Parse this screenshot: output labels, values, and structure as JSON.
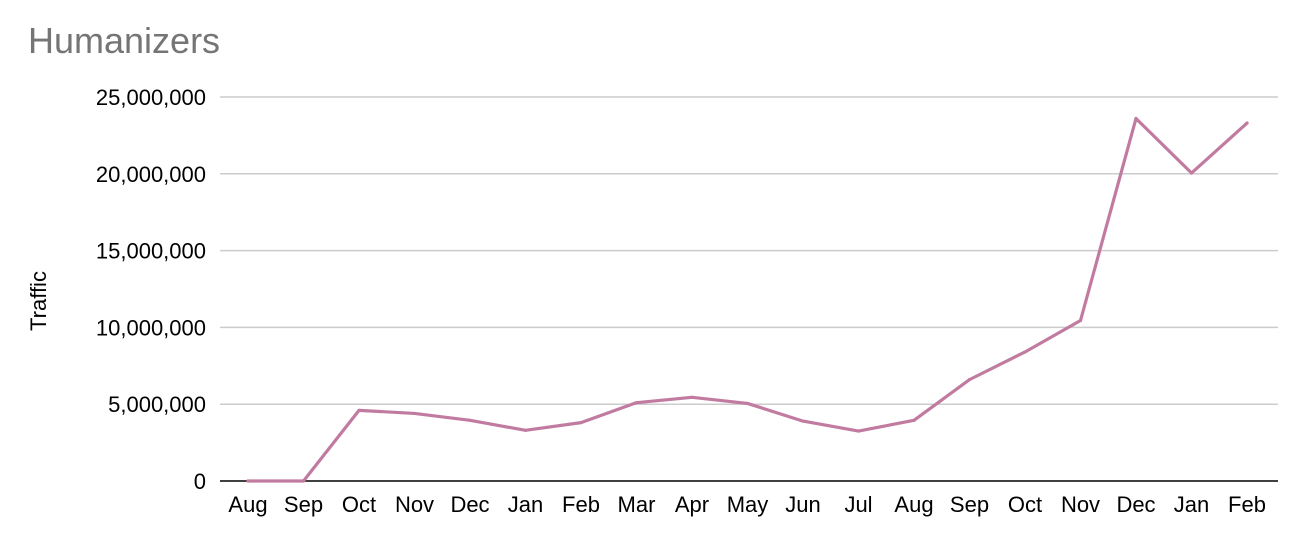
{
  "chart_data": {
    "type": "line",
    "title": "Humanizers",
    "xlabel": "",
    "ylabel": "Traffic",
    "categories": [
      "Aug",
      "Sep",
      "Oct",
      "Nov",
      "Dec",
      "Jan",
      "Feb",
      "Mar",
      "Apr",
      "May",
      "Jun",
      "Jul",
      "Aug",
      "Sep",
      "Oct",
      "Nov",
      "Dec",
      "Jan",
      "Feb"
    ],
    "series": [
      {
        "values": [
          0,
          0,
          4600000,
          4400000,
          3950000,
          3300000,
          3800000,
          5100000,
          5450000,
          5050000,
          3900000,
          3250000,
          3950000,
          6600000,
          8400000,
          10450000,
          23600000,
          20050000,
          23300000
        ],
        "color": "#c27ba0"
      }
    ],
    "ylim": [
      0,
      25000000
    ],
    "yticks": [
      "0",
      "5,000,000",
      "10,000,000",
      "15,000,000",
      "20,000,000",
      "25,000,000"
    ],
    "ytick_values": [
      0,
      5000000,
      10000000,
      15000000,
      20000000,
      25000000
    ],
    "grid": true,
    "gridline_color": "#cccccc",
    "axis_color": "#000000"
  }
}
